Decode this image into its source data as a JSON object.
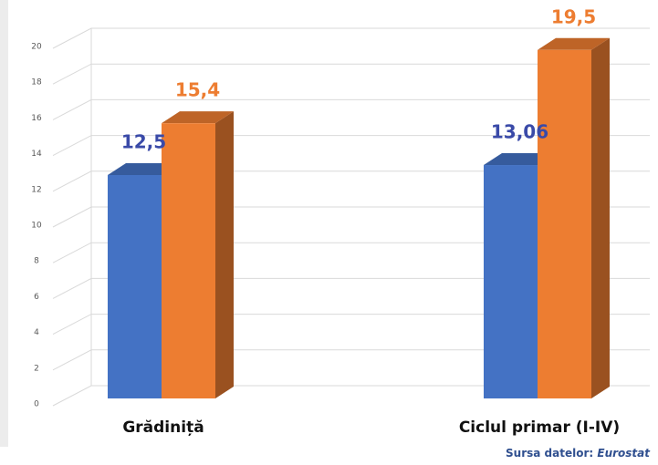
{
  "chart_data": {
    "type": "bar3d",
    "categories": [
      "Grădiniță",
      "Ciclul primar (I-IV)"
    ],
    "series": [
      {
        "color": "#4472c4",
        "label_color": "#3a4aa8",
        "values": [
          12.5,
          13.06
        ],
        "value_labels": [
          "12,5",
          "13,06"
        ]
      },
      {
        "color": "#ed7d31",
        "label_color": "#ed7d31",
        "values": [
          15.4,
          19.5
        ],
        "value_labels": [
          "15,4",
          "19,5"
        ]
      }
    ],
    "ylim": [
      0,
      20
    ],
    "yticks": [
      0,
      2,
      4,
      6,
      8,
      10,
      12,
      14,
      16,
      18,
      20
    ],
    "grid": true
  },
  "source": {
    "label": "Sursa datelor:",
    "name": "Eurostat"
  }
}
